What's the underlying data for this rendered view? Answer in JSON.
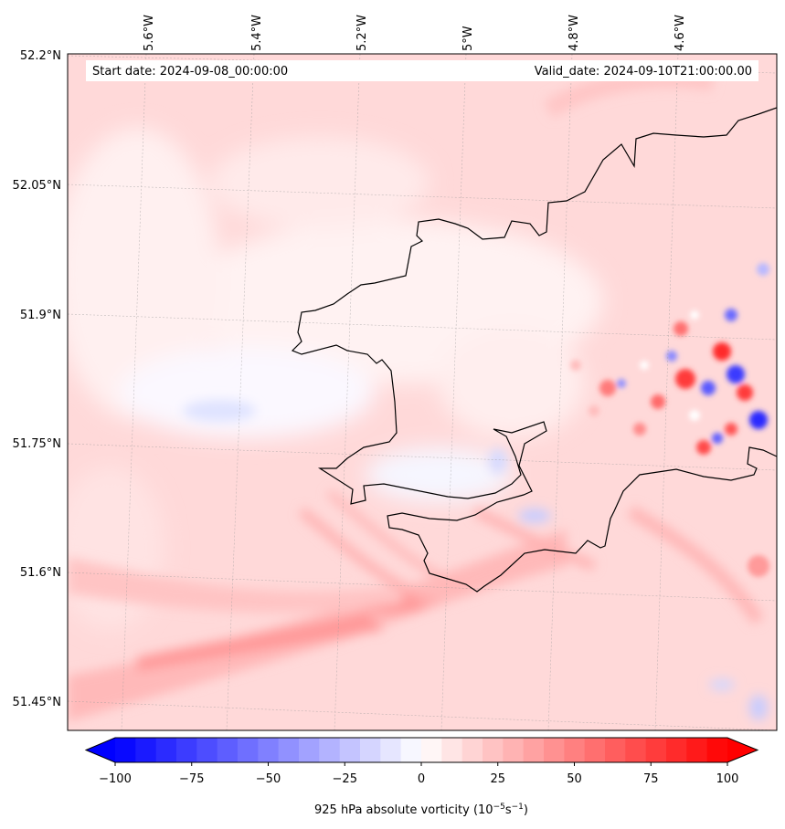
{
  "header": {
    "start_date": "Start date: 2024-09-08_00:00:00",
    "valid_date": "Valid_date: 2024-09-10T21:00:00.00"
  },
  "lon_labels": [
    "5.6°W",
    "5.4°W",
    "5.2°W",
    "5°W",
    "4.8°W",
    "4.6°W"
  ],
  "lat_labels": [
    "52.2°N",
    "52.05°N",
    "51.9°N",
    "51.75°N",
    "51.6°N",
    "51.45°N"
  ],
  "colorbar": {
    "label": "925 hPa absolute vorticity (10",
    "label_exp1": "−5",
    "label_mid": "s",
    "label_exp2": "−1",
    "label_end": ")",
    "ticks": [
      "−100",
      "−75",
      "−50",
      "−25",
      "0",
      "25",
      "50",
      "75",
      "100"
    ],
    "min": -100,
    "max": 100,
    "levels": 30,
    "cmap": "bwr",
    "extend": "both"
  },
  "map": {
    "field": "925 hPa absolute vorticity",
    "lon_range": [
      -5.7,
      -4.5
    ],
    "lat_range": [
      51.42,
      52.2
    ],
    "coastline_color": "#000000"
  }
}
